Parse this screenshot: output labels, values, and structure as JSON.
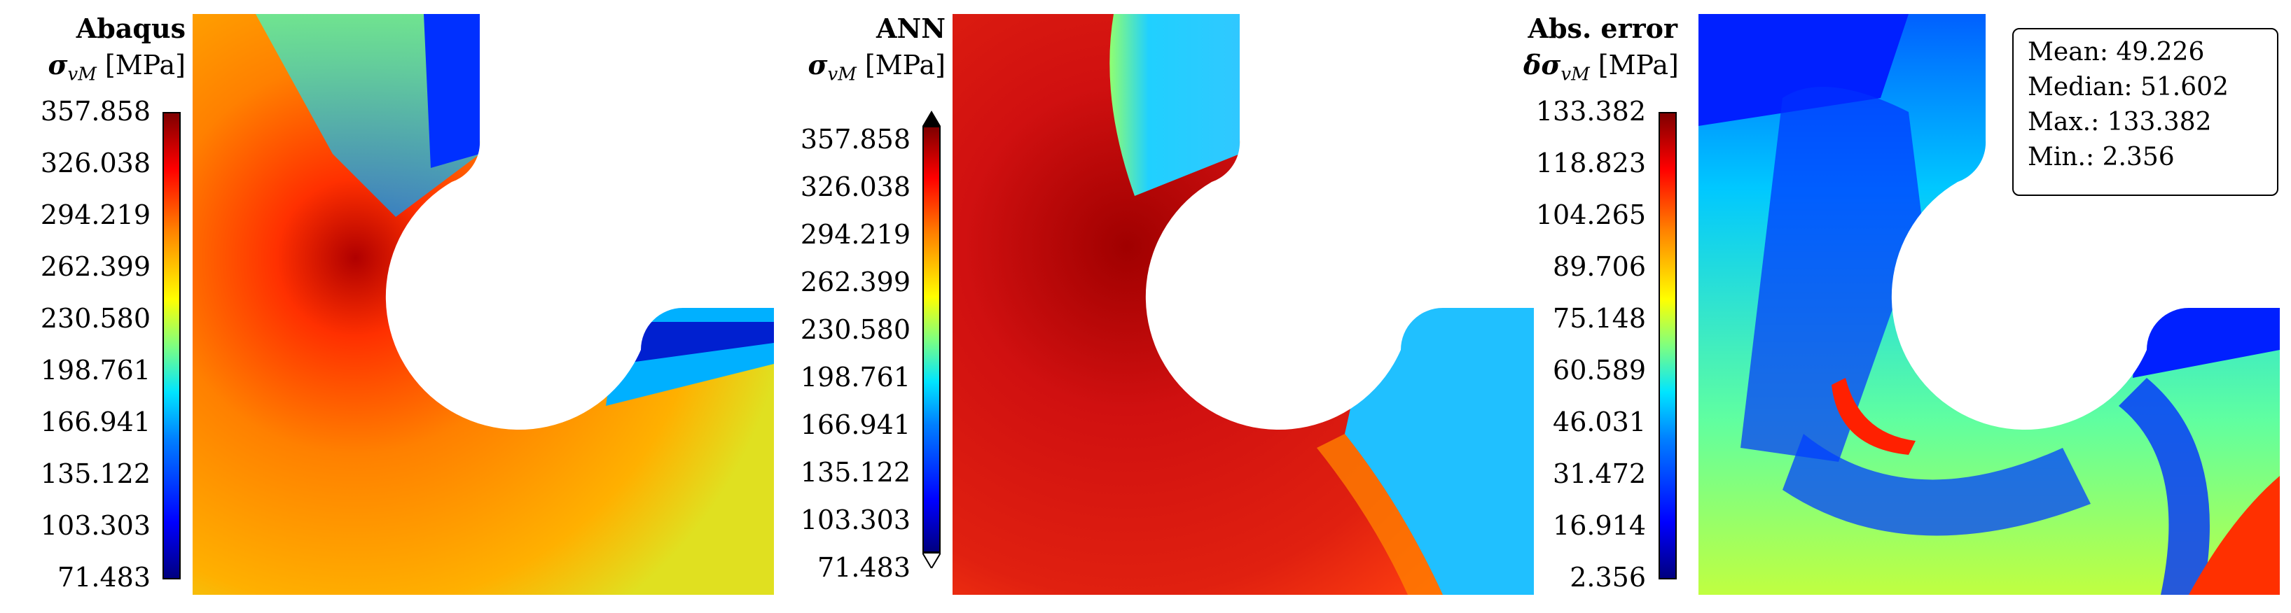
{
  "panels": [
    {
      "title": "Abaqus",
      "symbol": "σ",
      "subscript": "vM",
      "unit": "[MPa]",
      "ticks": [
        "357.858",
        "326.038",
        "294.219",
        "262.399",
        "230.580",
        "198.761",
        "166.941",
        "135.122",
        "103.303",
        "71.483"
      ]
    },
    {
      "title": "ANN",
      "symbol": "σ",
      "subscript": "vM",
      "unit": "[MPa]",
      "ticks": [
        "357.858",
        "326.038",
        "294.219",
        "262.399",
        "230.580",
        "198.761",
        "166.941",
        "135.122",
        "103.303",
        "71.483"
      ]
    },
    {
      "title": "Abs. error",
      "symbol": "δσ",
      "subscript": "vM",
      "unit": "[MPa]",
      "ticks": [
        "133.382",
        "118.823",
        "104.265",
        "89.706",
        "75.148",
        "60.589",
        "46.031",
        "31.472",
        "16.914",
        "2.356"
      ]
    }
  ],
  "stats": {
    "mean": "Mean: 49.226",
    "median": "Median: 51.602",
    "max": "Max.: 133.382",
    "min": "Min.: 2.356"
  }
}
